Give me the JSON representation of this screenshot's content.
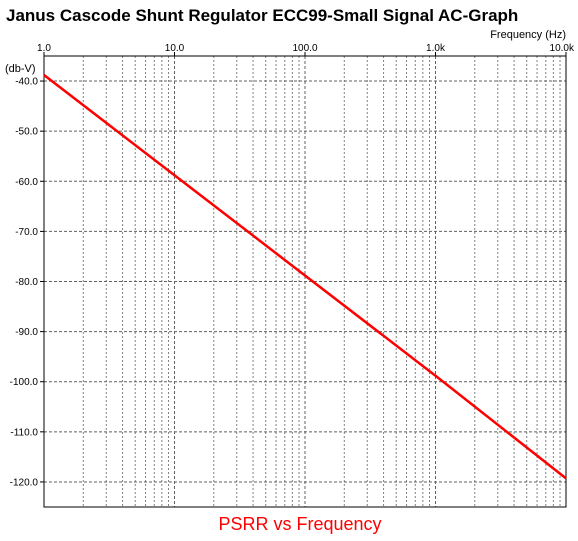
{
  "chart_data": {
    "type": "line",
    "title": "Janus Cascode Shunt Regulator ECC99-Small Signal AC-Graph",
    "caption": "PSRR vs Frequency",
    "xlabel": "Frequency  (Hz)",
    "ylabel": "(db-V)",
    "x_scale": "log",
    "xlim": [
      1,
      10000
    ],
    "ylim": [
      -125,
      -35
    ],
    "x_ticks": [
      {
        "value": 1,
        "label": "1.0"
      },
      {
        "value": 10,
        "label": "10.0"
      },
      {
        "value": 100,
        "label": "100.0"
      },
      {
        "value": 1000,
        "label": "1.0k"
      },
      {
        "value": 10000,
        "label": "10.0k"
      }
    ],
    "y_ticks": [
      {
        "value": -40,
        "label": "-40.0"
      },
      {
        "value": -50,
        "label": "-50.0"
      },
      {
        "value": -60,
        "label": "-60.0"
      },
      {
        "value": -70,
        "label": "-70.0"
      },
      {
        "value": -80,
        "label": "-80.0"
      },
      {
        "value": -90,
        "label": "-90.0"
      },
      {
        "value": -100,
        "label": "-100.0"
      },
      {
        "value": -110,
        "label": "-110.0"
      },
      {
        "value": -120,
        "label": "-120.0"
      }
    ],
    "grid": true,
    "series": [
      {
        "color": "#ff0000",
        "x": [
          1,
          10,
          100,
          1000,
          10000
        ],
        "y": [
          -38.8,
          -58.8,
          -78.8,
          -98.8,
          -119.3
        ]
      }
    ]
  }
}
